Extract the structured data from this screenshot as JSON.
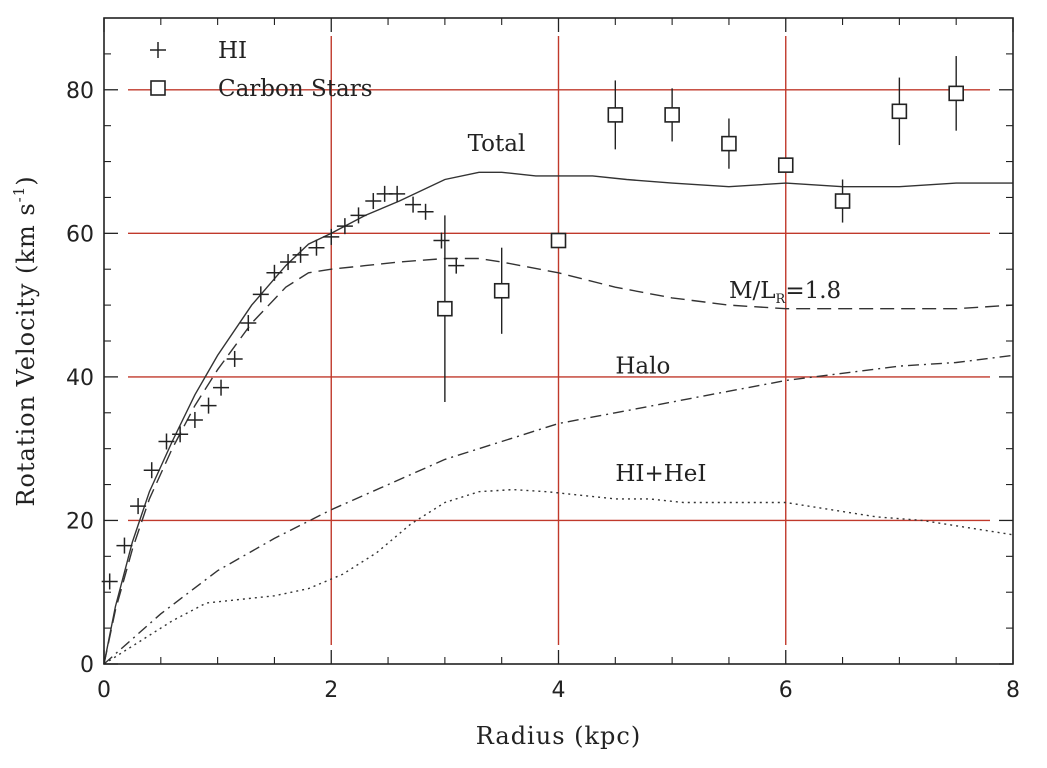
{
  "chart_data": {
    "type": "line",
    "xlabel": "Radius (kpc)",
    "ylabel": "Rotation Velocity (km s",
    "ylabel_sup": "-1",
    "ylabel_close": ")",
    "xlim": [
      0,
      8
    ],
    "ylim": [
      0,
      90
    ],
    "x_ticks": [
      "0",
      "2",
      "4",
      "6",
      "8"
    ],
    "y_ticks": [
      "0",
      "20",
      "40",
      "60",
      "80"
    ],
    "grid": true,
    "grid_color": "#c0392b",
    "legend_position": "top-left",
    "legend": [
      {
        "marker": "plus",
        "label": "HI"
      },
      {
        "marker": "square",
        "label": "Carbon Stars"
      }
    ],
    "series": [
      {
        "name": "HI",
        "kind": "points",
        "marker": "plus",
        "x": [
          0.05,
          0.18,
          0.3,
          0.42,
          0.55,
          0.67,
          0.8,
          0.92,
          1.03,
          1.15,
          1.27,
          1.38,
          1.5,
          1.62,
          1.73,
          1.87,
          2.0,
          2.12,
          2.24,
          2.37,
          2.47,
          2.58,
          2.72,
          2.83,
          2.97,
          3.1
        ],
        "y": [
          11.5,
          16.5,
          22,
          27,
          31,
          32,
          34,
          36,
          38.5,
          42.5,
          47.5,
          51.5,
          54.5,
          56,
          57,
          58,
          59.5,
          61,
          62.5,
          64.5,
          65.5,
          65.5,
          64,
          63,
          59,
          55.5
        ]
      },
      {
        "name": "Carbon Stars",
        "kind": "points",
        "marker": "square",
        "x": [
          3.0,
          3.5,
          4.0,
          4.5,
          5.0,
          5.5,
          6.0,
          6.5,
          7.0,
          7.5
        ],
        "y": [
          49.5,
          52,
          59,
          76.5,
          76.5,
          72.5,
          69.5,
          64.5,
          77,
          79.5
        ],
        "err": [
          13,
          6,
          0,
          4.8,
          3.7,
          3.5,
          0,
          3,
          4.7,
          5.2
        ]
      },
      {
        "name": "Total",
        "kind": "line",
        "style": "solid",
        "x": [
          0,
          0.1,
          0.25,
          0.4,
          0.6,
          0.8,
          1.0,
          1.3,
          1.6,
          1.8,
          2.0,
          2.3,
          2.6,
          3.0,
          3.3,
          3.5,
          3.8,
          4.0,
          4.3,
          4.6,
          5.0,
          5.5,
          6.0,
          6.5,
          7.0,
          7.5,
          8.0
        ],
        "y": [
          0,
          8,
          17,
          24,
          31,
          37.5,
          43,
          50,
          55.5,
          58.5,
          60,
          62.5,
          64.5,
          67.5,
          68.5,
          68.5,
          68,
          68,
          68,
          67.5,
          67,
          66.5,
          67,
          66.5,
          66.5,
          67,
          67
        ]
      },
      {
        "name": "M/L=1.8",
        "kind": "line",
        "style": "dashed",
        "x": [
          0,
          0.1,
          0.25,
          0.4,
          0.6,
          0.8,
          1.0,
          1.3,
          1.6,
          1.8,
          2.0,
          2.3,
          2.6,
          3.0,
          3.3,
          3.5,
          4.0,
          4.5,
          5.0,
          5.5,
          6.0,
          6.5,
          7.0,
          7.5,
          8.0
        ],
        "y": [
          0,
          7.5,
          16,
          23,
          30,
          36,
          41,
          47.5,
          52.5,
          54.5,
          55,
          55.5,
          56,
          56.5,
          56.5,
          56,
          54.5,
          52.5,
          51,
          50,
          49.5,
          49.5,
          49.5,
          49.5,
          50
        ]
      },
      {
        "name": "Halo",
        "kind": "line",
        "style": "dashdot",
        "x": [
          0,
          0.5,
          1.0,
          1.5,
          2.0,
          2.5,
          3.0,
          3.5,
          4.0,
          4.5,
          5.0,
          5.5,
          6.0,
          6.5,
          7.0,
          7.5,
          8.0
        ],
        "y": [
          0,
          7,
          13,
          17.5,
          21.5,
          25,
          28.5,
          31,
          33.5,
          35,
          36.5,
          38,
          39.5,
          40.5,
          41.5,
          42,
          43
        ]
      },
      {
        "name": "HI+HeI",
        "kind": "line",
        "style": "dotted",
        "x": [
          0,
          0.3,
          0.6,
          0.9,
          1.2,
          1.5,
          1.8,
          2.1,
          2.4,
          2.7,
          3.0,
          3.3,
          3.6,
          3.9,
          4.2,
          4.5,
          4.8,
          5.1,
          5.4,
          5.7,
          6.0,
          6.4,
          6.8,
          7.2,
          7.6,
          8.0
        ],
        "y": [
          0,
          3,
          6,
          8.5,
          9,
          9.5,
          10.5,
          12.5,
          15.5,
          19.5,
          22.5,
          24,
          24.3,
          24,
          23.5,
          23,
          23,
          22.5,
          22.5,
          22.5,
          22.5,
          21.5,
          20.5,
          20,
          19,
          18
        ]
      }
    ],
    "annotations": [
      {
        "text": "Total",
        "x": 3.2,
        "y": 71.5
      },
      {
        "text": "M/L",
        "sub": "R",
        "rest": "=1.8",
        "x": 5.5,
        "y": 51
      },
      {
        "text": "Halo",
        "x": 4.5,
        "y": 40.5
      },
      {
        "text": "HI+HeI",
        "x": 4.5,
        "y": 25.5
      }
    ]
  }
}
